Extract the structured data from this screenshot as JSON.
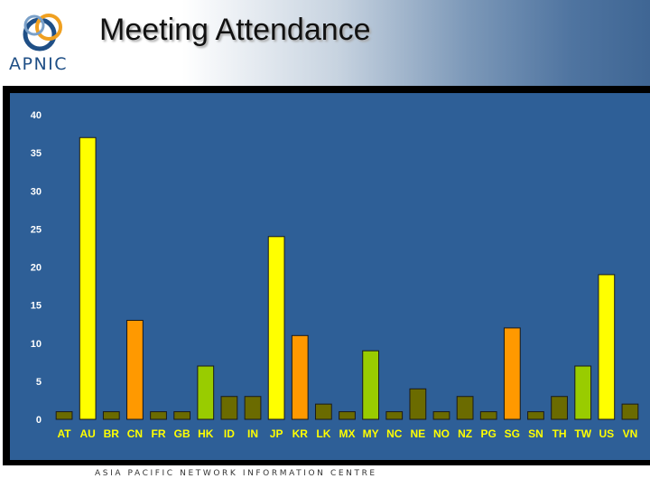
{
  "header": {
    "title": "Meeting Attendance",
    "logo_text": "APNIC",
    "footer": "ASIA PACIFIC NETWORK INFORMATION CENTRE"
  },
  "colors": {
    "plot_bg": "#2e5f97",
    "frame": "#000000",
    "tick_text": "#ffffff",
    "category_text": "#ffff00",
    "bar_stroke": "#1a1a1a"
  },
  "chart_data": {
    "type": "bar",
    "title": "",
    "xlabel": "",
    "ylabel": "",
    "ylim": [
      0,
      40
    ],
    "yticks": [
      0,
      5,
      10,
      15,
      20,
      25,
      30,
      35,
      40
    ],
    "grid": false,
    "categories": [
      "AT",
      "AU",
      "BR",
      "CN",
      "FR",
      "GB",
      "HK",
      "ID",
      "IN",
      "JP",
      "KR",
      "LK",
      "MX",
      "MY",
      "NC",
      "NE",
      "NO",
      "NZ",
      "PG",
      "SG",
      "SN",
      "TH",
      "TW",
      "US",
      "VN"
    ],
    "values": [
      1,
      37,
      1,
      13,
      1,
      1,
      7,
      3,
      3,
      24,
      11,
      2,
      1,
      9,
      1,
      4,
      1,
      3,
      1,
      12,
      1,
      3,
      7,
      19,
      2
    ],
    "bar_colors": [
      "#6b6b00",
      "#ffff00",
      "#6b6b00",
      "#ff9900",
      "#6b6b00",
      "#6b6b00",
      "#99cc00",
      "#6b6b00",
      "#6b6b00",
      "#ffff00",
      "#ff9900",
      "#6b6b00",
      "#6b6b00",
      "#99cc00",
      "#6b6b00",
      "#6b6b00",
      "#6b6b00",
      "#6b6b00",
      "#6b6b00",
      "#ff9900",
      "#6b6b00",
      "#6b6b00",
      "#99cc00",
      "#ffff00",
      "#6b6b00"
    ]
  }
}
